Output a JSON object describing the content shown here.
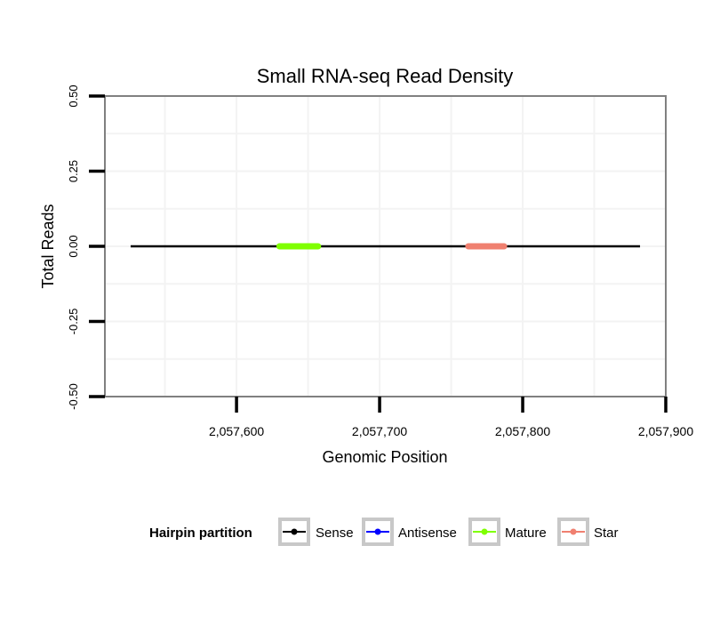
{
  "chart_data": {
    "type": "line",
    "title": "Small RNA-seq Read Density",
    "xlabel": "Genomic Position",
    "ylabel": "Total Reads",
    "xlim": [
      2057508,
      2057900
    ],
    "ylim": [
      -0.5,
      0.5
    ],
    "x_ticks": [
      2057600,
      2057700,
      2057800,
      2057900
    ],
    "x_tick_labels": [
      "2,057,600",
      "2,057,700",
      "2,057,800",
      "2,057,900"
    ],
    "y_ticks": [
      0.5,
      0.25,
      0.0,
      -0.25,
      -0.5
    ],
    "y_tick_labels": [
      "0.50",
      "0.25",
      "0.00",
      "-0.25",
      "-0.50"
    ],
    "grid": true,
    "legend_position": "bottom",
    "legend_title": "Hairpin partition",
    "series": [
      {
        "name": "Sense",
        "color": "#000000",
        "x": [
          2057526,
          2057882
        ],
        "y": [
          0,
          0
        ]
      },
      {
        "name": "Antisense",
        "color": "#0000ff",
        "x": [
          2057526,
          2057882
        ],
        "y": [
          0,
          0
        ]
      },
      {
        "name": "Mature",
        "color": "#7fff00",
        "x": [
          2057630,
          2057657
        ],
        "y": [
          0,
          0
        ]
      },
      {
        "name": "Star",
        "color": "#f08070",
        "x": [
          2057762,
          2057787
        ],
        "y": [
          0,
          0
        ]
      }
    ]
  }
}
